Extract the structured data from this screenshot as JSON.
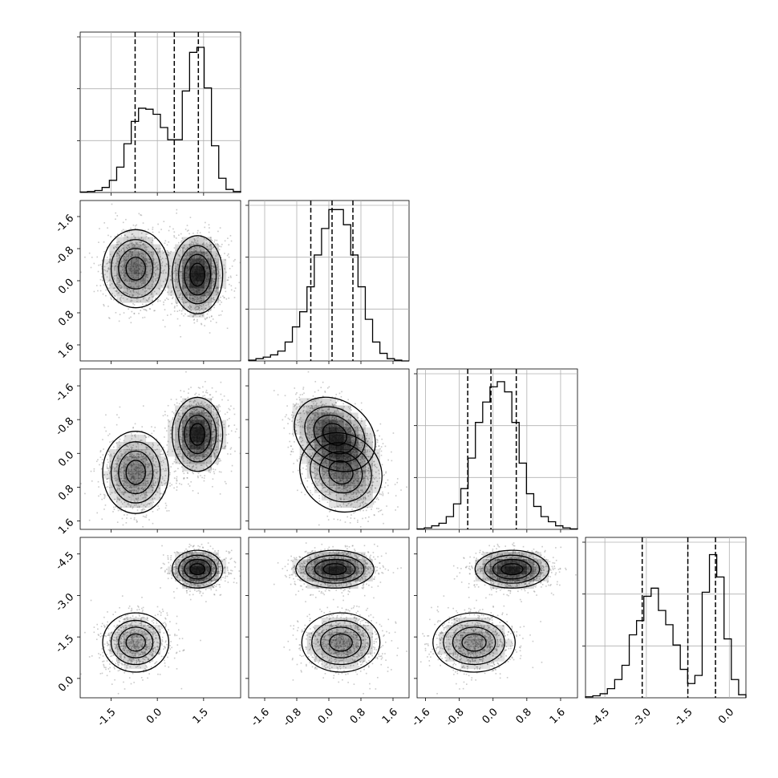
{
  "chart_data": {
    "type": "corner",
    "grid": true,
    "colors": {
      "ink": "#000000",
      "grid": "#b0b0b0",
      "density": "#000000"
    },
    "x_ticks": [
      [
        "-1.5",
        "0.0",
        "1.5"
      ],
      [
        "-1.6",
        "-0.8",
        "0.0",
        "0.8",
        "1.6"
      ],
      [
        "-1.6",
        "-0.8",
        "0.0",
        "0.8",
        "1.6"
      ],
      [
        "-4.5",
        "-3.0",
        "-1.5",
        "0.0"
      ]
    ],
    "y_ticks": [
      [],
      [
        "1.6",
        "0.8",
        "0.0",
        "-0.8",
        "-1.6"
      ],
      [
        "1.6",
        "0.8",
        "0.0",
        "-0.8",
        "-1.6"
      ],
      [
        "0.0",
        "-1.5",
        "-3.0",
        "-4.5"
      ]
    ],
    "variables": [
      {
        "range": [
          -2.5,
          2.7
        ],
        "ticks": [
          -1.5,
          0.0,
          1.5
        ],
        "tick_labels": [
          "−1.5",
          "0.0",
          "1.5"
        ],
        "quantiles": [
          -0.72,
          0.55,
          1.33
        ]
      },
      {
        "range": [
          -2.0,
          2.0
        ],
        "ticks": [
          -1.6,
          -0.8,
          0.0,
          0.8,
          1.6
        ],
        "tick_labels": [
          "−1.6",
          "−0.8",
          "0.0",
          "0.8",
          "1.6"
        ],
        "quantiles": [
          -0.45,
          0.08,
          0.6
        ]
      },
      {
        "range": [
          -1.8,
          2.0
        ],
        "ticks": [
          -1.6,
          -0.8,
          0.0,
          0.8,
          1.6
        ],
        "tick_labels": [
          "−1.6",
          "−0.8",
          "0.0",
          "0.8",
          "1.6"
        ],
        "quantiles": [
          -0.6,
          -0.05,
          0.55
        ]
      },
      {
        "range": [
          -5.2,
          0.6
        ],
        "ticks": [
          -4.5,
          -3.0,
          -1.5,
          0.0
        ],
        "tick_labels": [
          "−4.5",
          "−3.0",
          "−1.5",
          "0.0"
        ],
        "quantiles": [
          -3.15,
          -1.5,
          -0.5
        ]
      }
    ],
    "histograms": [
      {
        "var": 0,
        "edges": [
          -2.5,
          2.7
        ],
        "counts": [
          0.5,
          1,
          2,
          5,
          12,
          25,
          48,
          70,
          83,
          82,
          77,
          64,
          52,
          52,
          100,
          138,
          143,
          103,
          46,
          14,
          3,
          1
        ]
      },
      {
        "var": 1,
        "edges": [
          -2.0,
          2.0
        ],
        "counts": [
          1,
          3,
          5,
          8,
          13,
          25,
          45,
          65,
          98,
          140,
          175,
          200,
          200,
          180,
          140,
          98,
          55,
          25,
          10,
          3,
          1,
          0
        ]
      },
      {
        "var": 2,
        "edges": [
          -1.8,
          2.0
        ],
        "counts": [
          1,
          3,
          7,
          12,
          25,
          50,
          80,
          140,
          210,
          250,
          280,
          290,
          270,
          210,
          130,
          70,
          45,
          25,
          15,
          7,
          3,
          1
        ]
      },
      {
        "var": 3,
        "edges": [
          -5.2,
          0.6
        ],
        "counts": [
          1,
          2,
          4,
          9,
          18,
          32,
          62,
          76,
          100,
          108,
          86,
          72,
          52,
          28,
          14,
          22,
          104,
          141,
          119,
          58,
          18,
          3
        ]
      }
    ],
    "ylim": {
      "0": [
        0,
        158
      ],
      "1": [
        0,
        212
      ],
      "2": [
        0,
        315
      ],
      "3": [
        0,
        158
      ]
    },
    "modes": [
      {
        "center": [
          -0.7,
          0.3,
          -0.45,
          -3.2
        ],
        "sd": [
          0.55,
          0.5,
          0.5,
          0.55
        ],
        "corr01": 0.0,
        "corr12": -0.35,
        "weight": 0.45
      },
      {
        "center": [
          1.3,
          0.15,
          0.45,
          -0.55
        ],
        "sd": [
          0.42,
          0.5,
          0.45,
          0.35
        ],
        "corr01": 0.0,
        "corr12": -0.45,
        "weight": 0.55
      }
    ]
  }
}
